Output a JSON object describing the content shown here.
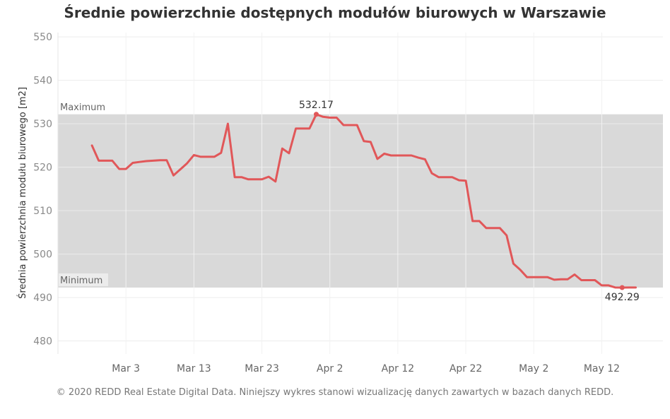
{
  "chart_data": {
    "type": "line",
    "title": "Średnie powierzchnie dostępnych modułów biurowych w Warszawie",
    "xlabel": "",
    "ylabel": "Średnia powierzchnia modułu biurowego [m2]",
    "ylim": [
      477,
      551
    ],
    "yticks": [
      480,
      490,
      500,
      510,
      520,
      530,
      540,
      550
    ],
    "xticks": [
      {
        "date": "2020-03-03",
        "label": "Mar 3"
      },
      {
        "date": "2020-03-13",
        "label": "Mar 13"
      },
      {
        "date": "2020-03-23",
        "label": "Mar 23"
      },
      {
        "date": "2020-04-02",
        "label": "Apr 2"
      },
      {
        "date": "2020-04-12",
        "label": "Apr 12"
      },
      {
        "date": "2020-04-22",
        "label": "Apr 22"
      },
      {
        "date": "2020-05-02",
        "label": "May 2"
      },
      {
        "date": "2020-05-12",
        "label": "May 12"
      }
    ],
    "xlim": [
      "2020-02-22",
      "2020-05-21"
    ],
    "grid": true,
    "band": {
      "min": 492.29,
      "max": 532.17,
      "min_label": "Minimum",
      "max_label": "Maximum",
      "color": "#d9d9d9"
    },
    "series": [
      {
        "color": "#e15759",
        "x": [
          "2020-02-27",
          "2020-02-28",
          "2020-02-29",
          "2020-03-01",
          "2020-03-02",
          "2020-03-03",
          "2020-03-04",
          "2020-03-05",
          "2020-03-06",
          "2020-03-07",
          "2020-03-08",
          "2020-03-09",
          "2020-03-10",
          "2020-03-11",
          "2020-03-12",
          "2020-03-13",
          "2020-03-14",
          "2020-03-15",
          "2020-03-16",
          "2020-03-17",
          "2020-03-18",
          "2020-03-19",
          "2020-03-20",
          "2020-03-21",
          "2020-03-22",
          "2020-03-23",
          "2020-03-24",
          "2020-03-25",
          "2020-03-26",
          "2020-03-27",
          "2020-03-28",
          "2020-03-29",
          "2020-03-30",
          "2020-03-31",
          "2020-04-01",
          "2020-04-02",
          "2020-04-03",
          "2020-04-04",
          "2020-04-05",
          "2020-04-06",
          "2020-04-07",
          "2020-04-08",
          "2020-04-09",
          "2020-04-10",
          "2020-04-11",
          "2020-04-12",
          "2020-04-13",
          "2020-04-14",
          "2020-04-15",
          "2020-04-16",
          "2020-04-17",
          "2020-04-18",
          "2020-04-19",
          "2020-04-20",
          "2020-04-21",
          "2020-04-22",
          "2020-04-23",
          "2020-04-24",
          "2020-04-25",
          "2020-04-26",
          "2020-04-27",
          "2020-04-28",
          "2020-04-29",
          "2020-04-30",
          "2020-05-01",
          "2020-05-02",
          "2020-05-03",
          "2020-05-04",
          "2020-05-05",
          "2020-05-06",
          "2020-05-07",
          "2020-05-08",
          "2020-05-09",
          "2020-05-10",
          "2020-05-11",
          "2020-05-12",
          "2020-05-13",
          "2020-05-14",
          "2020-05-15",
          "2020-05-16",
          "2020-05-17"
        ],
        "values": [
          525.0,
          521.5,
          521.5,
          521.5,
          519.6,
          519.6,
          521.0,
          521.2,
          521.4,
          521.5,
          521.6,
          521.6,
          518.1,
          519.5,
          520.9,
          522.8,
          522.4,
          522.4,
          522.4,
          523.3,
          530.0,
          517.7,
          517.7,
          517.2,
          517.2,
          517.2,
          517.8,
          516.7,
          524.3,
          523.2,
          528.9,
          528.9,
          528.9,
          532.17,
          531.6,
          531.4,
          531.4,
          529.7,
          529.7,
          529.7,
          526.0,
          525.8,
          521.9,
          523.1,
          522.7,
          522.7,
          522.7,
          522.7,
          522.2,
          521.8,
          518.6,
          517.7,
          517.7,
          517.7,
          517.0,
          516.9,
          507.6,
          507.6,
          506.0,
          506.0,
          506.0,
          504.3,
          497.8,
          496.4,
          494.7,
          494.7,
          494.7,
          494.7,
          494.1,
          494.2,
          494.2,
          495.3,
          494.0,
          494.0,
          494.0,
          492.8,
          492.8,
          492.3,
          492.29,
          492.3,
          492.3
        ]
      }
    ],
    "annotations": [
      {
        "date": "2020-03-31",
        "value": 532.17,
        "label": "532.17"
      },
      {
        "date": "2020-05-15",
        "value": 492.29,
        "label": "492.29"
      }
    ]
  },
  "footer": "© 2020 REDD Real Estate Digital Data. Niniejszy wykres stanowi wizualizację danych zawartych w bazach danych REDD."
}
